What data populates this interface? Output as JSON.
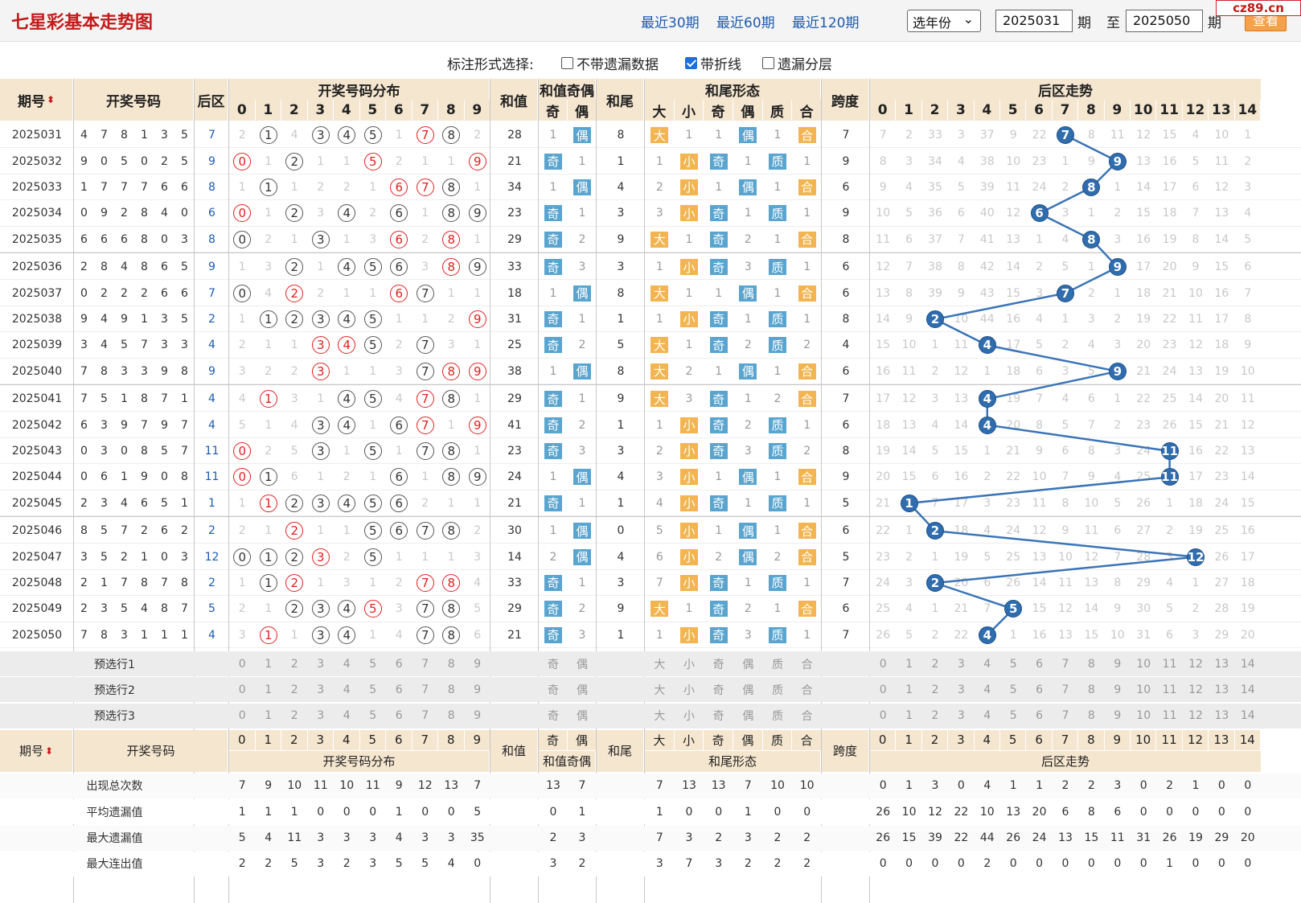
{
  "header": {
    "title": "七星彩基本走势图",
    "nav": [
      "最近30期",
      "最近60期",
      "最近120期"
    ],
    "year_select": "选年份",
    "from": "2025031",
    "to": "2025050",
    "period_label": "期",
    "to_label": "至",
    "query": "查看",
    "logo": "cz89.cn"
  },
  "options": {
    "label": "标注形式选择:",
    "items": [
      {
        "label": "不带遗漏数据",
        "checked": false
      },
      {
        "label": "带折线",
        "checked": true
      },
      {
        "label": "遗漏分层",
        "checked": false
      }
    ]
  },
  "columns": {
    "period": "期号",
    "numbers": "开奖号码",
    "back": "后区",
    "dist": "开奖号码分布",
    "sum": "和值",
    "sum_oe": "和值奇偶",
    "odd": "奇",
    "even": "偶",
    "tail": "和尾",
    "tail_form": "和尾形态",
    "big": "大",
    "small": "小",
    "prime": "质",
    "comp": "合",
    "span": "跨度",
    "back_trend": "后区走势"
  },
  "rows": [
    {
      "p": "2025031",
      "n": [
        4,
        7,
        8,
        1,
        3,
        5
      ],
      "b": 7,
      "d": [
        "2",
        "c1",
        "4",
        "c3",
        "c4",
        "c5",
        "1",
        "r7",
        "c8",
        "2"
      ],
      "s": 28,
      "oe": [
        "1",
        "偶"
      ],
      "t": 8,
      "tf": [
        "大",
        "1",
        "1",
        "偶",
        "1",
        "合"
      ],
      "sp": 7,
      "bt": [
        "7",
        "2",
        "33",
        "3",
        "37",
        "9",
        "22",
        "B",
        "8",
        "11",
        "12",
        "15",
        "4",
        "10",
        "1"
      ]
    },
    {
      "p": "2025032",
      "n": [
        9,
        0,
        5,
        0,
        2,
        5
      ],
      "b": 9,
      "d": [
        "r0",
        "1",
        "c2",
        "1",
        "1",
        "r5",
        "2",
        "1",
        "1",
        "r9"
      ],
      "s": 21,
      "oe": [
        "奇",
        "1"
      ],
      "t": 1,
      "tf": [
        "1",
        "小",
        "奇",
        "1",
        "质",
        "1"
      ],
      "sp": 9,
      "bt": [
        "8",
        "3",
        "34",
        "4",
        "38",
        "10",
        "23",
        "1",
        "9",
        "B",
        "13",
        "16",
        "5",
        "11",
        "2"
      ]
    },
    {
      "p": "2025033",
      "n": [
        1,
        7,
        7,
        7,
        6,
        6
      ],
      "b": 8,
      "d": [
        "1",
        "c1",
        "1",
        "2",
        "2",
        "1",
        "r6",
        "r7",
        "c8",
        "1"
      ],
      "s": 34,
      "oe": [
        "1",
        "偶"
      ],
      "t": 4,
      "tf": [
        "2",
        "小",
        "1",
        "偶",
        "1",
        "合"
      ],
      "sp": 6,
      "bt": [
        "9",
        "4",
        "35",
        "5",
        "39",
        "11",
        "24",
        "2",
        "B",
        "1",
        "14",
        "17",
        "6",
        "12",
        "3"
      ]
    },
    {
      "p": "2025034",
      "n": [
        0,
        9,
        2,
        8,
        4,
        0
      ],
      "b": 6,
      "d": [
        "r0",
        "1",
        "c2",
        "3",
        "c4",
        "2",
        "c6",
        "1",
        "c8",
        "c9"
      ],
      "s": 23,
      "oe": [
        "奇",
        "1"
      ],
      "t": 3,
      "tf": [
        "3",
        "小",
        "奇",
        "1",
        "质",
        "1"
      ],
      "sp": 9,
      "bt": [
        "10",
        "5",
        "36",
        "6",
        "40",
        "12",
        "B",
        "3",
        "1",
        "2",
        "15",
        "18",
        "7",
        "13",
        "4"
      ]
    },
    {
      "p": "2025035",
      "n": [
        6,
        6,
        6,
        8,
        0,
        3
      ],
      "b": 8,
      "d": [
        "c0",
        "2",
        "1",
        "c3",
        "1",
        "3",
        "r6",
        "2",
        "r8",
        "1"
      ],
      "s": 29,
      "oe": [
        "奇",
        "2"
      ],
      "t": 9,
      "tf": [
        "大",
        "1",
        "奇",
        "2",
        "1",
        "合"
      ],
      "sp": 8,
      "bt": [
        "11",
        "6",
        "37",
        "7",
        "41",
        "13",
        "1",
        "4",
        "B",
        "3",
        "16",
        "19",
        "8",
        "14",
        "5"
      ]
    },
    {
      "p": "2025036",
      "n": [
        2,
        8,
        4,
        8,
        6,
        5
      ],
      "b": 9,
      "d": [
        "1",
        "3",
        "c2",
        "1",
        "c4",
        "c5",
        "c6",
        "3",
        "r8",
        "c9"
      ],
      "s": 33,
      "oe": [
        "奇",
        "3"
      ],
      "t": 3,
      "tf": [
        "1",
        "小",
        "奇",
        "3",
        "质",
        "1"
      ],
      "sp": 6,
      "bt": [
        "12",
        "7",
        "38",
        "8",
        "42",
        "14",
        "2",
        "5",
        "1",
        "B",
        "17",
        "20",
        "9",
        "15",
        "6"
      ]
    },
    {
      "p": "2025037",
      "n": [
        0,
        2,
        2,
        2,
        6,
        6
      ],
      "b": 7,
      "d": [
        "c0",
        "4",
        "r2",
        "2",
        "1",
        "1",
        "r6",
        "c7",
        "1",
        "1"
      ],
      "s": 18,
      "oe": [
        "1",
        "偶"
      ],
      "t": 8,
      "tf": [
        "大",
        "1",
        "1",
        "偶",
        "1",
        "合"
      ],
      "sp": 6,
      "bt": [
        "13",
        "8",
        "39",
        "9",
        "43",
        "15",
        "3",
        "B",
        "2",
        "1",
        "18",
        "21",
        "10",
        "16",
        "7"
      ]
    },
    {
      "p": "2025038",
      "n": [
        9,
        4,
        9,
        1,
        3,
        5
      ],
      "b": 2,
      "d": [
        "1",
        "c1",
        "c2",
        "c3",
        "c4",
        "c5",
        "1",
        "1",
        "2",
        "r9"
      ],
      "s": 31,
      "oe": [
        "奇",
        "1"
      ],
      "t": 1,
      "tf": [
        "1",
        "小",
        "奇",
        "1",
        "质",
        "1"
      ],
      "sp": 8,
      "bt": [
        "14",
        "9",
        "B",
        "10",
        "44",
        "16",
        "4",
        "1",
        "3",
        "2",
        "19",
        "22",
        "11",
        "17",
        "8"
      ]
    },
    {
      "p": "2025039",
      "n": [
        3,
        4,
        5,
        7,
        3,
        3
      ],
      "b": 4,
      "d": [
        "2",
        "1",
        "1",
        "r3",
        "r4",
        "c5",
        "2",
        "c7",
        "3",
        "1"
      ],
      "s": 25,
      "oe": [
        "奇",
        "2"
      ],
      "t": 5,
      "tf": [
        "大",
        "1",
        "奇",
        "2",
        "质",
        "2"
      ],
      "sp": 4,
      "bt": [
        "15",
        "10",
        "1",
        "11",
        "B",
        "17",
        "5",
        "2",
        "4",
        "3",
        "20",
        "23",
        "12",
        "18",
        "9"
      ]
    },
    {
      "p": "2025040",
      "n": [
        7,
        8,
        3,
        3,
        9,
        8
      ],
      "b": 9,
      "d": [
        "3",
        "2",
        "2",
        "r3",
        "1",
        "1",
        "3",
        "c7",
        "r8",
        "r9"
      ],
      "s": 38,
      "oe": [
        "1",
        "偶"
      ],
      "t": 8,
      "tf": [
        "大",
        "2",
        "1",
        "偶",
        "1",
        "合"
      ],
      "sp": 6,
      "bt": [
        "16",
        "11",
        "2",
        "12",
        "1",
        "18",
        "6",
        "3",
        "5",
        "B",
        "21",
        "24",
        "13",
        "19",
        "10"
      ]
    },
    {
      "p": "2025041",
      "n": [
        7,
        5,
        1,
        8,
        7,
        1
      ],
      "b": 4,
      "d": [
        "4",
        "r1",
        "3",
        "1",
        "c4",
        "c5",
        "4",
        "r7",
        "c8",
        "1"
      ],
      "s": 29,
      "oe": [
        "奇",
        "1"
      ],
      "t": 9,
      "tf": [
        "大",
        "3",
        "奇",
        "1",
        "2",
        "合"
      ],
      "sp": 7,
      "bt": [
        "17",
        "12",
        "3",
        "13",
        "B",
        "19",
        "7",
        "4",
        "6",
        "1",
        "22",
        "25",
        "14",
        "20",
        "11"
      ]
    },
    {
      "p": "2025042",
      "n": [
        6,
        3,
        9,
        7,
        9,
        7
      ],
      "b": 4,
      "d": [
        "5",
        "1",
        "4",
        "c3",
        "c4",
        "1",
        "c6",
        "r7",
        "1",
        "r9"
      ],
      "s": 41,
      "oe": [
        "奇",
        "2"
      ],
      "t": 1,
      "tf": [
        "1",
        "小",
        "奇",
        "2",
        "质",
        "1"
      ],
      "sp": 6,
      "bt": [
        "18",
        "13",
        "4",
        "14",
        "B",
        "20",
        "8",
        "5",
        "7",
        "2",
        "23",
        "26",
        "15",
        "21",
        "12"
      ]
    },
    {
      "p": "2025043",
      "n": [
        0,
        3,
        0,
        8,
        5,
        7
      ],
      "b": 11,
      "d": [
        "r0",
        "2",
        "5",
        "c3",
        "1",
        "c5",
        "1",
        "c7",
        "c8",
        "1"
      ],
      "s": 23,
      "oe": [
        "奇",
        "3"
      ],
      "t": 3,
      "tf": [
        "2",
        "小",
        "奇",
        "3",
        "质",
        "2"
      ],
      "sp": 8,
      "bt": [
        "19",
        "14",
        "5",
        "15",
        "1",
        "21",
        "9",
        "6",
        "8",
        "3",
        "24",
        "B",
        "16",
        "22",
        "13"
      ]
    },
    {
      "p": "2025044",
      "n": [
        0,
        6,
        1,
        9,
        0,
        8
      ],
      "b": 11,
      "d": [
        "r0",
        "c1",
        "6",
        "1",
        "2",
        "1",
        "c6",
        "1",
        "c8",
        "c9"
      ],
      "s": 24,
      "oe": [
        "1",
        "偶"
      ],
      "t": 4,
      "tf": [
        "3",
        "小",
        "1",
        "偶",
        "1",
        "合"
      ],
      "sp": 9,
      "bt": [
        "20",
        "15",
        "6",
        "16",
        "2",
        "22",
        "10",
        "7",
        "9",
        "4",
        "25",
        "B",
        "17",
        "23",
        "14"
      ]
    },
    {
      "p": "2025045",
      "n": [
        2,
        3,
        4,
        6,
        5,
        1
      ],
      "b": 1,
      "d": [
        "1",
        "r1",
        "c2",
        "c3",
        "c4",
        "c5",
        "c6",
        "2",
        "1",
        "1"
      ],
      "s": 21,
      "oe": [
        "奇",
        "1"
      ],
      "t": 1,
      "tf": [
        "4",
        "小",
        "奇",
        "1",
        "质",
        "1"
      ],
      "sp": 5,
      "bt": [
        "21",
        "B",
        "7",
        "17",
        "3",
        "23",
        "11",
        "8",
        "10",
        "5",
        "26",
        "1",
        "18",
        "24",
        "15"
      ]
    },
    {
      "p": "2025046",
      "n": [
        8,
        5,
        7,
        2,
        6,
        2
      ],
      "b": 2,
      "d": [
        "2",
        "1",
        "r2",
        "1",
        "1",
        "c5",
        "c6",
        "c7",
        "c8",
        "2"
      ],
      "s": 30,
      "oe": [
        "1",
        "偶"
      ],
      "t": 0,
      "tf": [
        "5",
        "小",
        "1",
        "偶",
        "1",
        "合"
      ],
      "sp": 6,
      "bt": [
        "22",
        "1",
        "B",
        "18",
        "4",
        "24",
        "12",
        "9",
        "11",
        "6",
        "27",
        "2",
        "19",
        "25",
        "16"
      ]
    },
    {
      "p": "2025047",
      "n": [
        3,
        5,
        2,
        1,
        0,
        3
      ],
      "b": 12,
      "d": [
        "c0",
        "c1",
        "c2",
        "r3",
        "2",
        "c5",
        "1",
        "1",
        "1",
        "3"
      ],
      "s": 14,
      "oe": [
        "2",
        "偶"
      ],
      "t": 4,
      "tf": [
        "6",
        "小",
        "2",
        "偶",
        "2",
        "合"
      ],
      "sp": 5,
      "bt": [
        "23",
        "2",
        "1",
        "19",
        "5",
        "25",
        "13",
        "10",
        "12",
        "7",
        "28",
        "3",
        "B",
        "26",
        "17"
      ]
    },
    {
      "p": "2025048",
      "n": [
        2,
        1,
        7,
        8,
        7,
        8
      ],
      "b": 2,
      "d": [
        "1",
        "c1",
        "r2",
        "1",
        "3",
        "1",
        "2",
        "r7",
        "r8",
        "4"
      ],
      "s": 33,
      "oe": [
        "奇",
        "1"
      ],
      "t": 3,
      "tf": [
        "7",
        "小",
        "奇",
        "1",
        "质",
        "1"
      ],
      "sp": 7,
      "bt": [
        "24",
        "3",
        "B",
        "20",
        "6",
        "26",
        "14",
        "11",
        "13",
        "8",
        "29",
        "4",
        "1",
        "27",
        "18"
      ]
    },
    {
      "p": "2025049",
      "n": [
        2,
        3,
        5,
        4,
        8,
        7
      ],
      "b": 5,
      "d": [
        "2",
        "1",
        "c2",
        "c3",
        "c4",
        "r5",
        "3",
        "c7",
        "c8",
        "5"
      ],
      "s": 29,
      "oe": [
        "奇",
        "2"
      ],
      "t": 9,
      "tf": [
        "大",
        "1",
        "奇",
        "2",
        "1",
        "合"
      ],
      "sp": 6,
      "bt": [
        "25",
        "4",
        "1",
        "21",
        "7",
        "B",
        "15",
        "12",
        "14",
        "9",
        "30",
        "5",
        "2",
        "28",
        "19"
      ]
    },
    {
      "p": "2025050",
      "n": [
        7,
        8,
        3,
        1,
        1,
        1
      ],
      "b": 4,
      "d": [
        "3",
        "r1",
        "1",
        "c3",
        "c4",
        "1",
        "4",
        "c7",
        "c8",
        "6"
      ],
      "s": 21,
      "oe": [
        "奇",
        "3"
      ],
      "t": 1,
      "tf": [
        "1",
        "小",
        "奇",
        "3",
        "质",
        "1"
      ],
      "sp": 7,
      "bt": [
        "26",
        "5",
        "2",
        "22",
        "B",
        "1",
        "16",
        "13",
        "15",
        "10",
        "31",
        "6",
        "3",
        "29",
        "20"
      ]
    }
  ],
  "preselect": [
    "预选行1",
    "预选行2",
    "预选行3"
  ],
  "stats": {
    "labels": [
      "出现总次数",
      "平均遗漏值",
      "最大遗漏值",
      "最大连出值"
    ],
    "dist": [
      [
        "7",
        "9",
        "10",
        "11",
        "10",
        "11",
        "9",
        "12",
        "13",
        "7"
      ],
      [
        "1",
        "1",
        "1",
        "0",
        "0",
        "0",
        "1",
        "0",
        "0",
        "5"
      ],
      [
        "5",
        "4",
        "11",
        "3",
        "3",
        "3",
        "4",
        "3",
        "3",
        "35"
      ],
      [
        "2",
        "2",
        "5",
        "3",
        "2",
        "3",
        "5",
        "5",
        "4",
        "0"
      ]
    ],
    "oe": [
      [
        "13",
        "7"
      ],
      [
        "0",
        "1"
      ],
      [
        "2",
        "3"
      ],
      [
        "3",
        "2"
      ]
    ],
    "tf": [
      [
        "7",
        "13",
        "13",
        "7",
        "10",
        "10"
      ],
      [
        "1",
        "0",
        "0",
        "1",
        "0",
        "0"
      ],
      [
        "7",
        "3",
        "2",
        "3",
        "2",
        "2"
      ],
      [
        "3",
        "7",
        "3",
        "2",
        "2",
        "2"
      ]
    ],
    "bt": [
      [
        "0",
        "1",
        "3",
        "0",
        "4",
        "1",
        "1",
        "2",
        "2",
        "3",
        "0",
        "2",
        "1",
        "0",
        "0"
      ],
      [
        "26",
        "10",
        "12",
        "22",
        "10",
        "13",
        "20",
        "6",
        "8",
        "6",
        "0",
        "0",
        "0",
        "0",
        "0"
      ],
      [
        "26",
        "15",
        "39",
        "22",
        "44",
        "26",
        "24",
        "13",
        "15",
        "11",
        "31",
        "26",
        "19",
        "29",
        "20"
      ],
      [
        "0",
        "0",
        "0",
        "0",
        "2",
        "0",
        "0",
        "0",
        "0",
        "0",
        "0",
        "1",
        "0",
        "0",
        "0"
      ]
    ]
  }
}
